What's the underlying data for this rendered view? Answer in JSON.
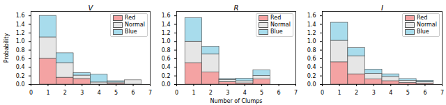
{
  "chart_data": [
    {
      "type": "histogram",
      "title": "V",
      "ylabel": "Probability",
      "stacked": true,
      "legend": "upper right",
      "bins": [
        0.5,
        1.5,
        2.5,
        3.5,
        4.5,
        5.5,
        6.5
      ],
      "series": [
        {
          "name": "Red",
          "color": "#f4a3a3",
          "values": [
            0.6,
            0.16,
            0.13,
            0.0,
            0.02,
            0.0
          ]
        },
        {
          "name": "Normal",
          "color": "#e6e6e6",
          "values": [
            0.5,
            0.34,
            0.08,
            0.05,
            0.03,
            0.1
          ]
        },
        {
          "name": "Blue",
          "color": "#a8dcec",
          "values": [
            0.5,
            0.23,
            0.06,
            0.18,
            0.03,
            0.0
          ]
        }
      ],
      "xlim": [
        0,
        7
      ],
      "xticks": [
        0,
        1,
        2,
        3,
        4,
        5,
        6,
        7
      ],
      "ylim": [
        0,
        1.7
      ],
      "yticks": [
        {
          "value": 0,
          "label": "0.0"
        },
        0.2,
        0.4,
        0.6,
        0.8,
        {
          "value": 1,
          "label": "1.0"
        },
        1.2,
        1.4,
        1.6
      ]
    },
    {
      "type": "histogram",
      "title": "R",
      "xlabel": "Number of Clumps",
      "stacked": true,
      "legend": "upper right",
      "bins": [
        0.5,
        1.5,
        2.5,
        3.5,
        4.5,
        5.5,
        6.5
      ],
      "series": [
        {
          "name": "Red",
          "color": "#f4a3a3",
          "values": [
            0.5,
            0.28,
            0.06,
            0.03,
            0.12,
            0.0
          ]
        },
        {
          "name": "Normal",
          "color": "#e6e6e6",
          "values": [
            0.5,
            0.42,
            0.05,
            0.05,
            0.08,
            0.0
          ]
        },
        {
          "name": "Blue",
          "color": "#a8dcec",
          "values": [
            0.55,
            0.18,
            0.02,
            0.06,
            0.13,
            0.0
          ]
        }
      ],
      "xlim": [
        0,
        7
      ],
      "xticks": [
        0,
        1,
        2,
        3,
        4,
        5,
        6,
        7
      ],
      "ylim": [
        0,
        1.7
      ],
      "yticks": [
        {
          "value": 0,
          "label": "0.0"
        },
        0.2,
        0.4,
        0.6,
        0.8,
        {
          "value": 1,
          "label": "1.0"
        },
        1.2,
        1.4,
        1.6
      ]
    },
    {
      "type": "histogram",
      "title": "I",
      "stacked": true,
      "legend": "upper right",
      "bins": [
        0.5,
        1.5,
        2.5,
        3.5,
        4.5,
        5.5,
        6.5
      ],
      "series": [
        {
          "name": "Red",
          "color": "#f4a3a3",
          "values": [
            0.52,
            0.24,
            0.12,
            0.08,
            0.04,
            0.02
          ]
        },
        {
          "name": "Normal",
          "color": "#e6e6e6",
          "values": [
            0.5,
            0.42,
            0.13,
            0.1,
            0.05,
            0.04
          ]
        },
        {
          "name": "Blue",
          "color": "#a8dcec",
          "values": [
            0.42,
            0.19,
            0.1,
            0.06,
            0.04,
            0.03
          ]
        }
      ],
      "xlim": [
        0,
        7
      ],
      "xticks": [
        0,
        1,
        2,
        3,
        4,
        5,
        6,
        7
      ],
      "ylim": [
        0,
        1.7
      ],
      "yticks": [
        {
          "value": 0,
          "label": "0.0"
        },
        0.2,
        0.4,
        0.6,
        0.8,
        {
          "value": 1,
          "label": "1.0"
        },
        1.2,
        1.4,
        1.6
      ]
    }
  ]
}
